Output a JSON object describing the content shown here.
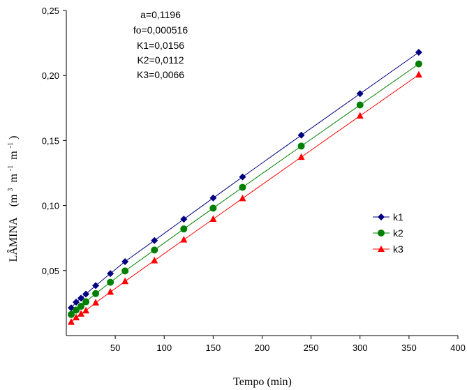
{
  "chart_data": {
    "type": "line",
    "xlabel": "Tempo (min)",
    "ylabel_main": "LÂMINA",
    "ylabel_unit": {
      "open": "(m",
      "exp1": "3",
      "mid1": " m",
      "exp2": "-1",
      "mid2": " m",
      "exp3": "-1",
      "close": ")"
    },
    "xlim": [
      0,
      400
    ],
    "ylim": [
      0,
      0.25
    ],
    "x_ticks": [
      50,
      100,
      150,
      200,
      250,
      300,
      350,
      400
    ],
    "x_tick_labels": [
      "50",
      "100",
      "150",
      "200",
      "250",
      "300",
      "350",
      "400"
    ],
    "y_ticks": [
      0.05,
      0.1,
      0.15,
      0.2,
      0.25
    ],
    "y_tick_labels": [
      "0,05",
      "0,10",
      "0,15",
      "0,20",
      "0,25"
    ],
    "annotations": [
      "a=0,1196",
      "fo=0,000516",
      "K1=0,0156",
      "K2=0,0112",
      "K3=0,0066"
    ],
    "legend_position": "right",
    "grid": false,
    "x": [
      5,
      10,
      15,
      20,
      30,
      45,
      60,
      90,
      120,
      150,
      180,
      240,
      300,
      360
    ],
    "series": [
      {
        "name": "k1",
        "marker": "diamond",
        "color": "#000080",
        "values": [
          0.0213,
          0.0257,
          0.0288,
          0.0319,
          0.0384,
          0.0477,
          0.0569,
          0.0731,
          0.0895,
          0.1058,
          0.122,
          0.1541,
          0.186,
          0.2178
        ]
      },
      {
        "name": "k2",
        "marker": "circle",
        "color": "#008000",
        "values": [
          0.0162,
          0.0196,
          0.0225,
          0.026,
          0.0323,
          0.041,
          0.0497,
          0.0658,
          0.082,
          0.098,
          0.114,
          0.1457,
          0.1773,
          0.2089
        ]
      },
      {
        "name": "k3",
        "marker": "triangle",
        "color": "#ff0000",
        "values": [
          0.0104,
          0.0139,
          0.0167,
          0.0192,
          0.0253,
          0.0335,
          0.0417,
          0.0577,
          0.0737,
          0.0896,
          0.1055,
          0.1373,
          0.169,
          0.2006
        ]
      }
    ]
  }
}
